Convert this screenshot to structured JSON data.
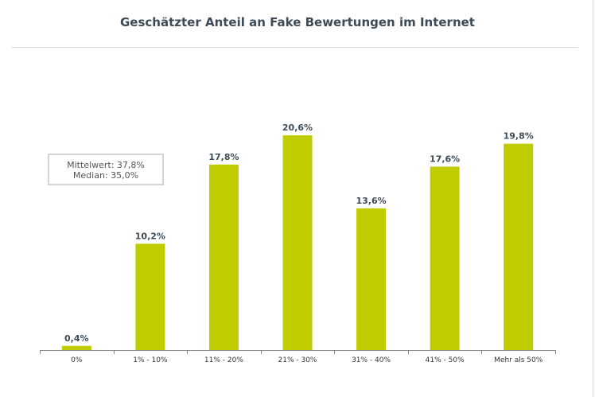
{
  "chart_data": {
    "type": "bar",
    "title": "Geschätzter Anteil an Fake Bewertungen im Internet",
    "categories": [
      "0%",
      "1% - 10%",
      "11% - 20%",
      "21% - 30%",
      "31% - 40%",
      "41% - 50%",
      "Mehr als 50%"
    ],
    "values": [
      0.4,
      10.2,
      17.8,
      20.6,
      13.6,
      17.6,
      19.8
    ],
    "value_labels": [
      "0,4%",
      "10,2%",
      "17,8%",
      "20,6%",
      "13,6%",
      "17,6%",
      "19,8%"
    ],
    "ylim": [
      0,
      25
    ],
    "grid": false,
    "bar_color": "#bfcc00"
  },
  "stats": {
    "mean": "Mittelwert: 37,8%",
    "median": "Median: 35,0%"
  }
}
